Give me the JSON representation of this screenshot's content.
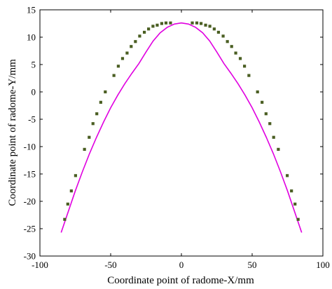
{
  "chart_data": {
    "type": "line",
    "title": "",
    "xlabel": "Coordinate point of radome-X/mm",
    "ylabel": "Coordinate point of radome-Y/mm",
    "xlim": [
      -100,
      100
    ],
    "ylim": [
      -30,
      15
    ],
    "xticks": [
      -100,
      -50,
      0,
      50,
      100
    ],
    "yticks": [
      -30,
      -25,
      -20,
      -15,
      -10,
      -5,
      0,
      5,
      10,
      15
    ],
    "grid": false,
    "box": true,
    "legend": false,
    "series": [
      {
        "kind": "line",
        "color": "#e000e0",
        "points": [
          [
            -85,
            -25.7
          ],
          [
            -80,
            -21.9
          ],
          [
            -75,
            -18.1
          ],
          [
            -70,
            -14.6
          ],
          [
            -65,
            -11.3
          ],
          [
            -60,
            -8.3
          ],
          [
            -55,
            -5.5
          ],
          [
            -50,
            -2.9
          ],
          [
            -45,
            -0.6
          ],
          [
            -40,
            1.5
          ],
          [
            -35,
            3.4
          ],
          [
            -30,
            5.2
          ],
          [
            -25,
            7.3
          ],
          [
            -20,
            9.3
          ],
          [
            -15,
            10.8
          ],
          [
            -10,
            11.8
          ],
          [
            -5,
            12.4
          ],
          [
            0,
            12.6
          ],
          [
            5,
            12.4
          ],
          [
            10,
            11.8
          ],
          [
            15,
            10.8
          ],
          [
            20,
            9.3
          ],
          [
            25,
            7.3
          ],
          [
            30,
            5.2
          ],
          [
            35,
            3.4
          ],
          [
            40,
            1.5
          ],
          [
            45,
            -0.6
          ],
          [
            50,
            -2.9
          ],
          [
            55,
            -5.5
          ],
          [
            60,
            -8.3
          ],
          [
            65,
            -11.3
          ],
          [
            70,
            -14.6
          ],
          [
            75,
            -18.1
          ],
          [
            80,
            -21.9
          ],
          [
            85,
            -25.7
          ]
        ]
      },
      {
        "kind": "markers",
        "color": "#4a5e22",
        "points": [
          [
            -82.5,
            -23.3
          ],
          [
            -80.3,
            -20.5
          ],
          [
            -77.8,
            -18.1
          ],
          [
            -74.8,
            -15.3
          ],
          [
            -68.5,
            -10.5
          ],
          [
            -65.2,
            -8.3
          ],
          [
            -62.5,
            -5.8
          ],
          [
            -59.8,
            -4.0
          ],
          [
            -57.0,
            -1.9
          ],
          [
            -53.8,
            0.0
          ],
          [
            -47.7,
            3.0
          ],
          [
            -44.6,
            4.7
          ],
          [
            -41.6,
            6.1
          ],
          [
            -38.4,
            7.1
          ],
          [
            -35.5,
            8.3
          ],
          [
            -32.5,
            9.2
          ],
          [
            -29.5,
            10.2
          ],
          [
            -26.2,
            10.9
          ],
          [
            -23.2,
            11.5
          ],
          [
            -20.1,
            12.0
          ],
          [
            -17.1,
            12.2
          ],
          [
            -13.9,
            12.5
          ],
          [
            -10.9,
            12.6
          ],
          [
            -7.7,
            12.6
          ],
          [
            7.7,
            12.6
          ],
          [
            10.9,
            12.6
          ],
          [
            13.9,
            12.5
          ],
          [
            17.1,
            12.2
          ],
          [
            20.1,
            12.0
          ],
          [
            23.2,
            11.5
          ],
          [
            26.2,
            10.9
          ],
          [
            29.5,
            10.2
          ],
          [
            32.5,
            9.2
          ],
          [
            35.5,
            8.3
          ],
          [
            38.4,
            7.1
          ],
          [
            41.6,
            6.1
          ],
          [
            44.6,
            4.7
          ],
          [
            47.7,
            3.0
          ],
          [
            53.8,
            0.0
          ],
          [
            57.0,
            -1.9
          ],
          [
            59.8,
            -4.0
          ],
          [
            62.5,
            -5.8
          ],
          [
            65.2,
            -8.3
          ],
          [
            68.5,
            -10.5
          ],
          [
            74.8,
            -15.3
          ],
          [
            77.8,
            -18.1
          ],
          [
            80.3,
            -20.5
          ],
          [
            82.5,
            -23.3
          ]
        ]
      }
    ]
  }
}
